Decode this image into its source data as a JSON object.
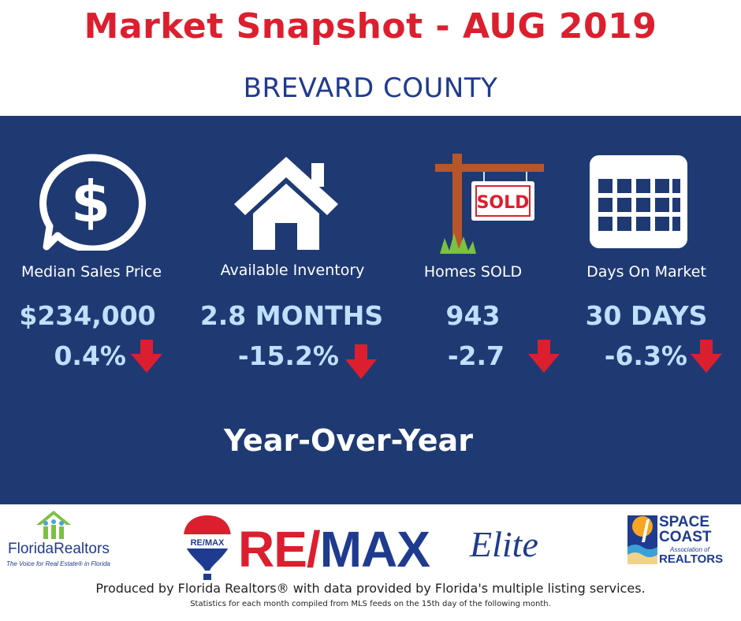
{
  "header": {
    "title": "Market Snapshot - AUG 2019",
    "county": "BREVARD COUNTY"
  },
  "metrics": [
    {
      "label": "Median Sales Price",
      "value": "$234,000",
      "change": "0.4%",
      "icon": "dollar-speech-bubble-icon",
      "trend": "down"
    },
    {
      "label": "Available Inventory",
      "value": "2.8 MONTHS",
      "change": "-15.2%",
      "icon": "house-icon",
      "trend": "down"
    },
    {
      "label": "Homes SOLD",
      "value": "943",
      "change": "-2.7",
      "icon": "sold-sign-icon",
      "sign_text": "SOLD",
      "trend": "down"
    },
    {
      "label": "Days On Market",
      "value": "30 DAYS",
      "change": "-6.3%",
      "icon": "calendar-icon",
      "trend": "down"
    }
  ],
  "yoy_label": "Year-Over-Year",
  "logos": {
    "florida_realtors": {
      "name": "FloridaRealtors",
      "tagline": "The Voice for Real Estate® in Florida"
    },
    "remax": {
      "balloon_text": "RE/MAX",
      "wordmark_red": "RE",
      "wordmark_slash": "/",
      "wordmark_blue": "MAX",
      "elite": "Elite"
    },
    "space_coast": {
      "line1": "SPACE",
      "line2": "COAST",
      "line3": "Association of",
      "line4": "REALTORS"
    }
  },
  "footer": {
    "produced": "Produced by Florida Realtors® with data provided by Florida's multiple listing services.",
    "stats": "Statistics for each month compiled from MLS feeds on the 15th day of the following month."
  },
  "colors": {
    "title_red": "#dc1f2e",
    "county_blue": "#1f3b8f",
    "panel_navy": "#1f3a73",
    "value_light_blue": "#bfe0ff",
    "arrow_red": "#dc1f2e"
  }
}
